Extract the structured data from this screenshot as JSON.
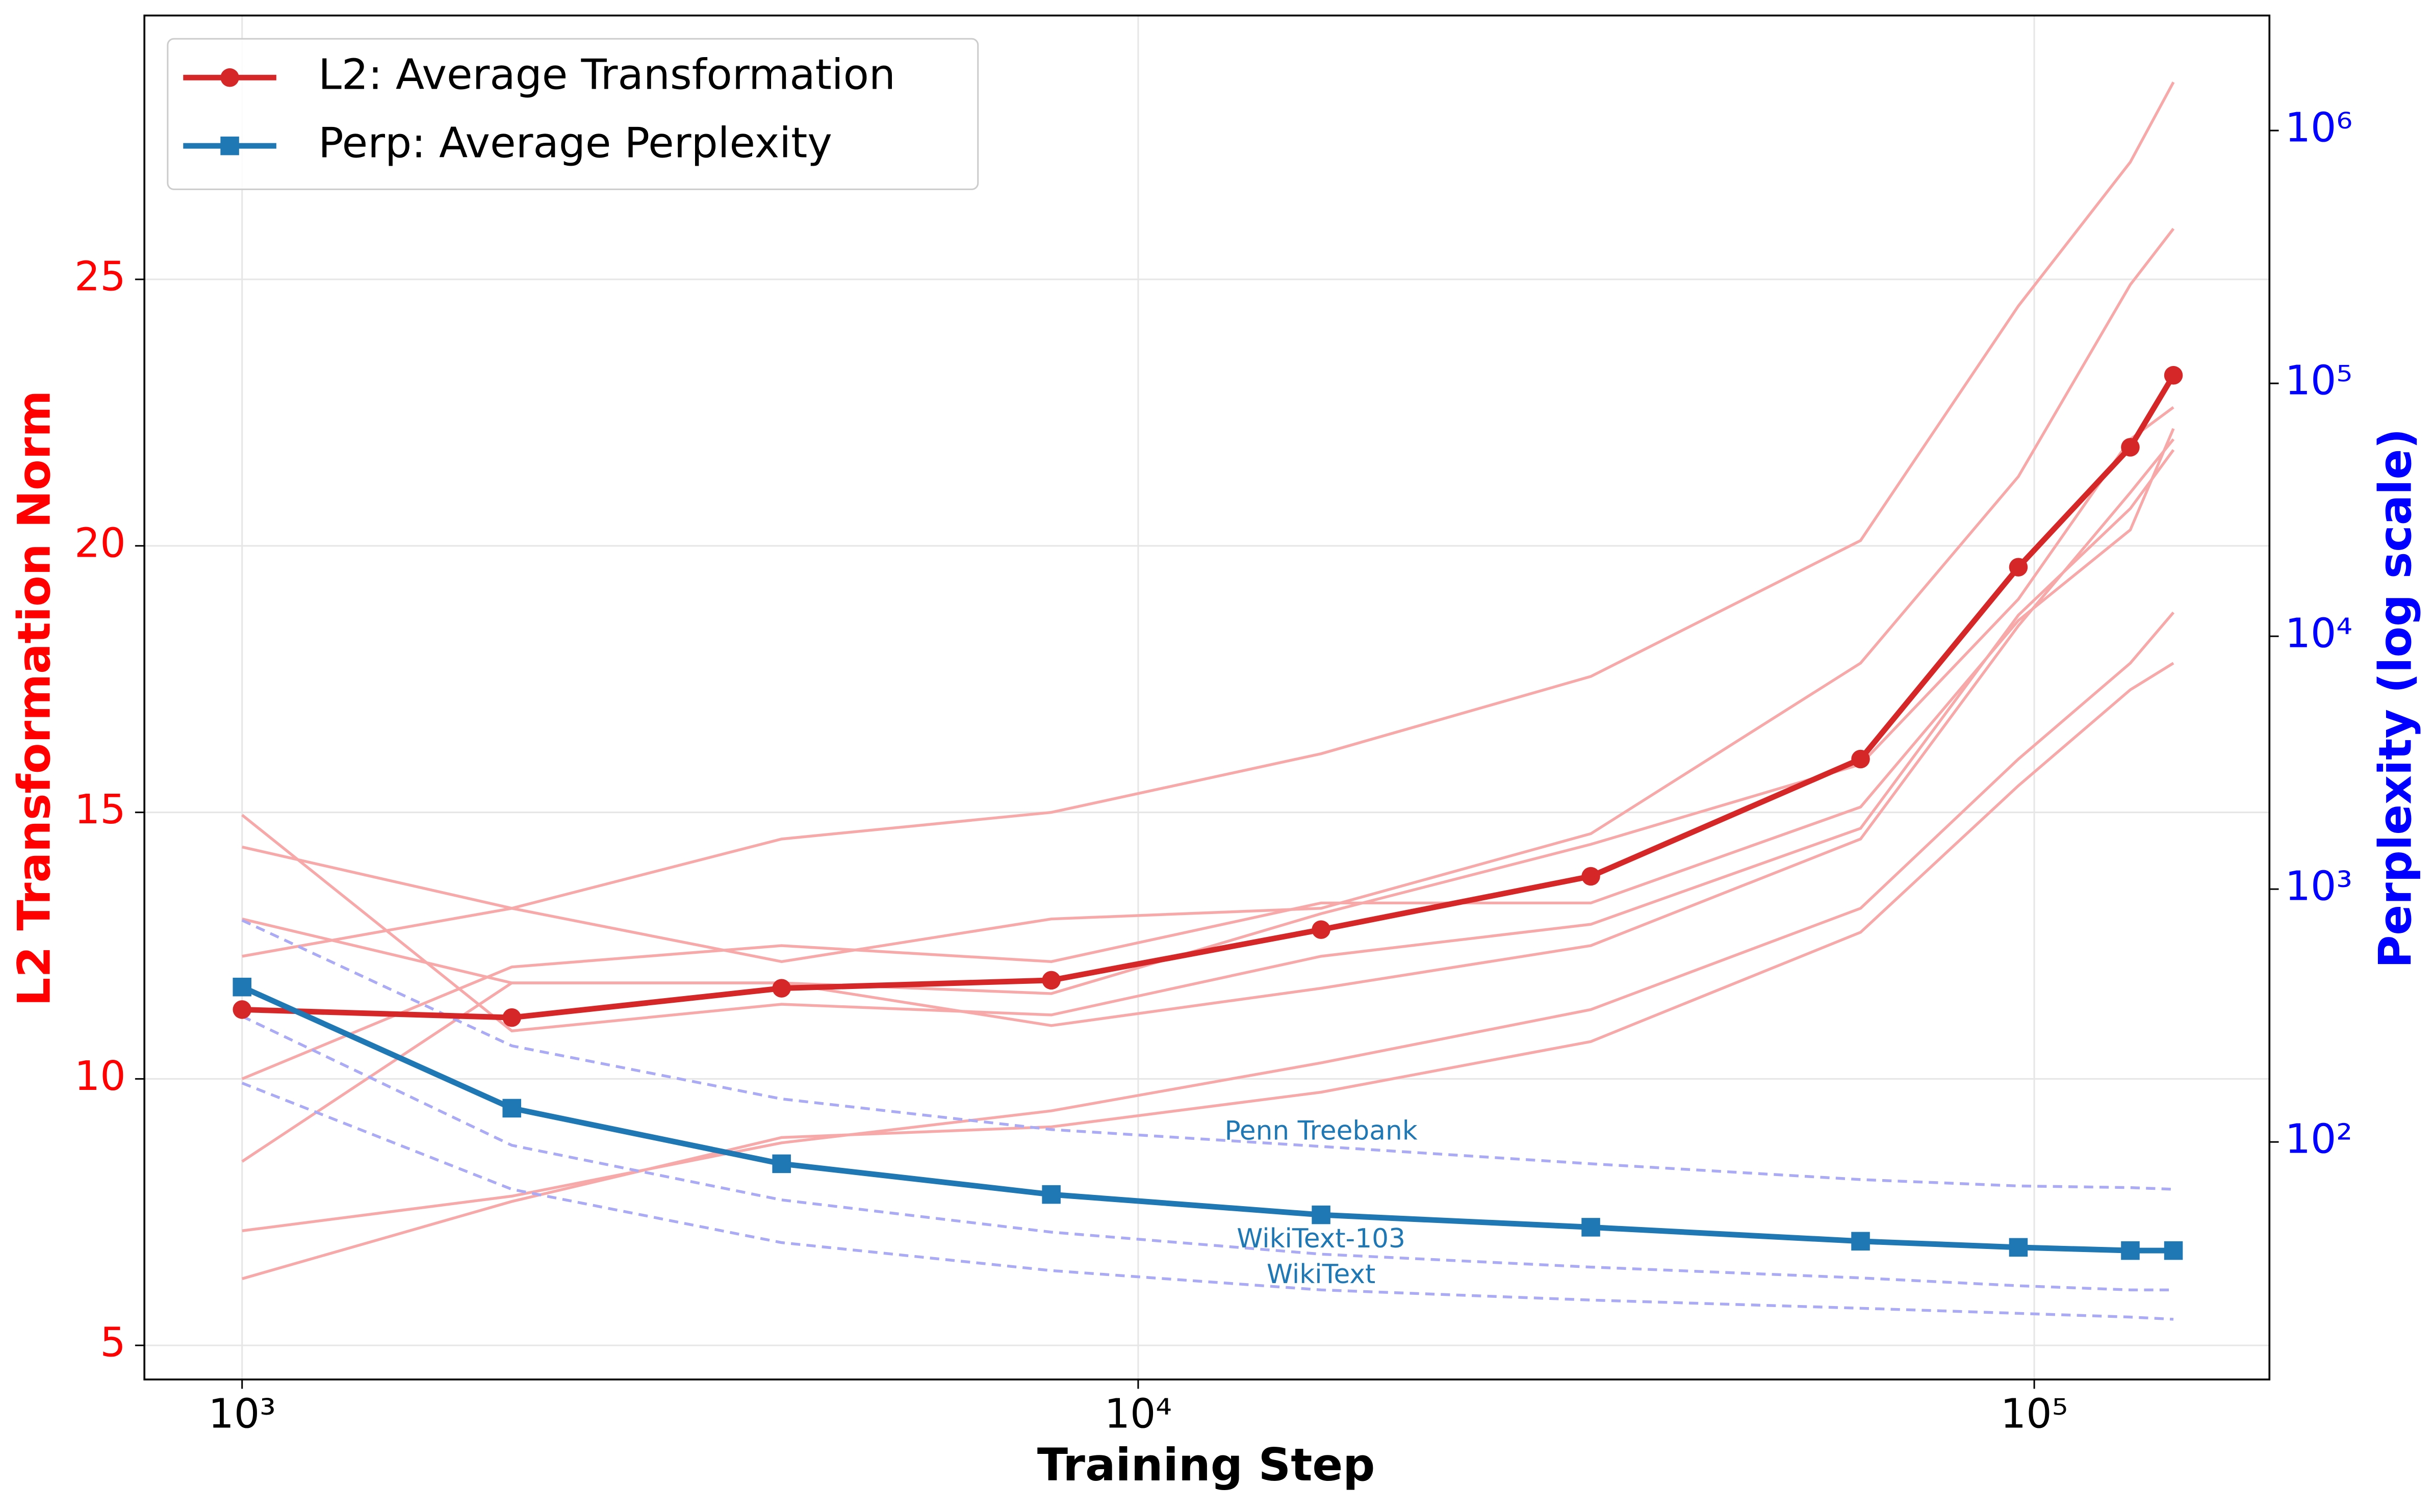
{
  "chart_data": {
    "type": "line",
    "x_label": "Training Step",
    "y_label": "L2 Transformation Norm",
    "y2_label": "Perplexity (log scale)",
    "x_log": true,
    "y2_log": true,
    "grid": true,
    "legend": "upper left",
    "xlim": [
      778,
      183000
    ],
    "xticks": [
      {
        "value": 1000,
        "label": "10³"
      },
      {
        "value": 10000,
        "label": "10⁴"
      },
      {
        "value": 100000,
        "label": "10⁵"
      }
    ],
    "ylim": [
      4.36,
      29.95
    ],
    "yticks": [
      5,
      10,
      15,
      20,
      25
    ],
    "y_color": "#ff0000",
    "y2lim": [
      11.5,
      2850000
    ],
    "y2ticks": [
      {
        "value": 100,
        "label": "10²"
      },
      {
        "value": 1000,
        "label": "10³"
      },
      {
        "value": 10000,
        "label": "10⁴"
      },
      {
        "value": 100000,
        "label": "10⁵"
      },
      {
        "value": 1000000,
        "label": "10⁶"
      }
    ],
    "y2_color": "#0000ff",
    "x": [
      1000,
      2000,
      4000,
      8000,
      16000,
      32000,
      64000,
      96000,
      128000,
      143000
    ],
    "series": [
      {
        "name": "L2: Average Transformation",
        "color": "#d62728",
        "marker": "circle",
        "axis": "y",
        "values": [
          11.3,
          11.15,
          11.7,
          11.85,
          12.8,
          13.8,
          16.0,
          19.6,
          21.85,
          23.2
        ]
      },
      {
        "name": "Perp: Average Perplexity",
        "color": "#1f77b4",
        "marker": "square",
        "axis": "y2",
        "values": [
          410,
          136,
          82,
          62,
          51.5,
          46,
          40.5,
          38.3,
          37.2,
          37.2
        ]
      }
    ],
    "runs": [
      {
        "axis": "y",
        "color": "#f7a9a9",
        "values": [
          12.3,
          13.2,
          14.5,
          15.0,
          16.1,
          17.55,
          20.1,
          24.5,
          27.2,
          28.7
        ]
      },
      {
        "axis": "y",
        "color": "#f7a9a9",
        "values": [
          14.95,
          10.9,
          11.4,
          11.2,
          12.3,
          12.9,
          14.7,
          18.7,
          20.7,
          21.8
        ]
      },
      {
        "axis": "y",
        "color": "#f7a9a9",
        "values": [
          14.35,
          13.2,
          12.2,
          13.0,
          13.2,
          14.6,
          17.8,
          21.3,
          24.9,
          25.95
        ]
      },
      {
        "axis": "y",
        "color": "#f7a9a9",
        "values": [
          13.0,
          11.8,
          11.8,
          11.6,
          13.1,
          14.4,
          15.9,
          19.0,
          22.0,
          22.6
        ]
      },
      {
        "axis": "y",
        "color": "#f7a9a9",
        "values": [
          10.0,
          12.1,
          12.5,
          12.2,
          13.3,
          13.3,
          15.1,
          18.6,
          20.3,
          22.2
        ]
      },
      {
        "axis": "y",
        "color": "#f7a9a9",
        "values": [
          8.45,
          11.8,
          11.8,
          11.0,
          11.7,
          12.5,
          14.5,
          18.5,
          21.0,
          22.0
        ]
      },
      {
        "axis": "y",
        "color": "#f7a9a9",
        "values": [
          7.15,
          7.8,
          8.8,
          9.4,
          10.3,
          11.3,
          13.2,
          16.0,
          17.8,
          18.75
        ]
      },
      {
        "axis": "y",
        "color": "#f7a9a9",
        "values": [
          6.25,
          7.7,
          8.9,
          9.1,
          9.75,
          10.7,
          12.75,
          15.5,
          17.3,
          17.8
        ]
      },
      {
        "name": "Penn Treebank",
        "axis": "y2",
        "dashed": true,
        "color": "#aaaaf5",
        "values": [
          753,
          240,
          148,
          112,
          96,
          82,
          71,
          67,
          66,
          65
        ]
      },
      {
        "name": "WikiText-103",
        "axis": "y2",
        "dashed": true,
        "color": "#aaaaf5",
        "values": [
          314,
          97,
          59,
          44,
          36,
          32,
          29,
          27,
          26,
          26
        ]
      },
      {
        "name": "WikiText",
        "axis": "y2",
        "dashed": true,
        "color": "#aaaaf5",
        "values": [
          171,
          65,
          40,
          31,
          26,
          23.7,
          22,
          21,
          20.3,
          19.9
        ]
      }
    ]
  }
}
